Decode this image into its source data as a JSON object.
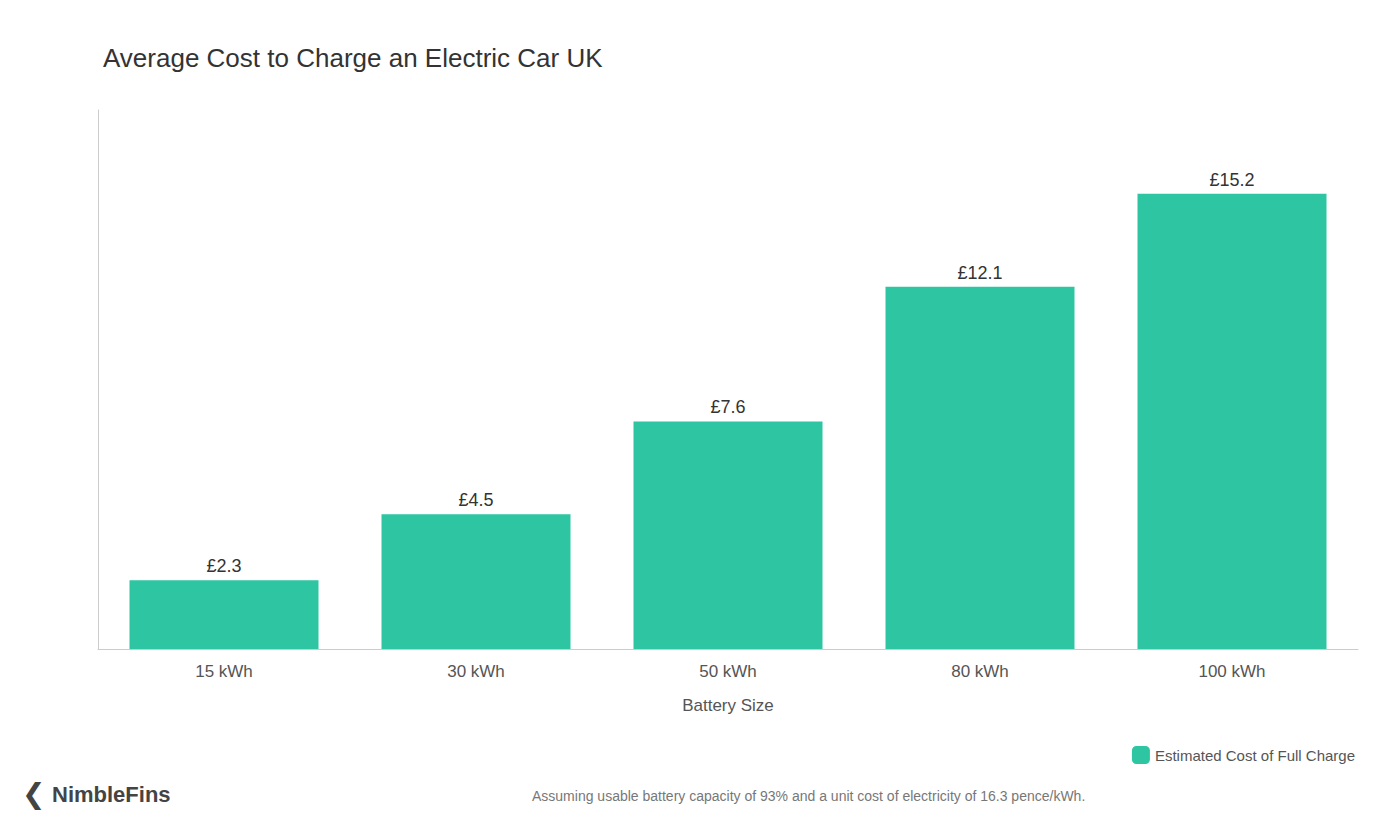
{
  "chart_data": {
    "type": "bar",
    "title": "Average Cost to Charge an Electric Car UK",
    "categories": [
      "15 kWh",
      "30 kWh",
      "50 kWh",
      "80 kWh",
      "100 kWh"
    ],
    "values": [
      2.3,
      4.5,
      7.6,
      12.1,
      15.2
    ],
    "value_labels": [
      "£2.3",
      "£4.5",
      "£7.6",
      "£12.1",
      "£15.2"
    ],
    "data_labels": true,
    "color": "#2DC5A2",
    "xlabel": "Battery Size",
    "ylim": [
      0,
      18
    ],
    "yticks": [],
    "tick_labels": "x",
    "grid": false,
    "legend": "lower right",
    "series_name": "Estimated Cost of Full Charge",
    "annotations": [
      "Assuming usable battery capacity of 93% and a unit cost of electricity of 16.3 pence/kWh.",
      "❮",
      "NimbleFins"
    ]
  }
}
